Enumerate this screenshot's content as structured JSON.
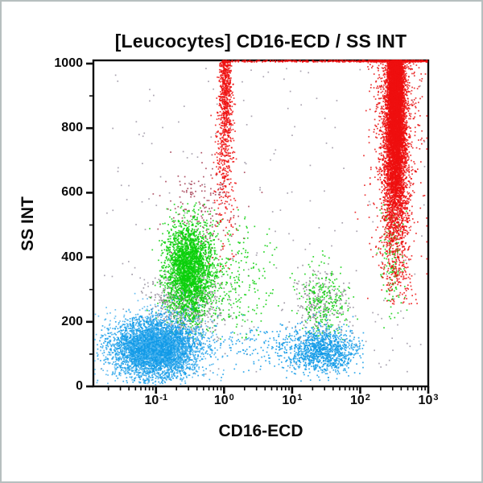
{
  "window": {
    "background": "#ffffff",
    "border_color": "#b7bfbf",
    "frame_color": "#0b0b0b"
  },
  "chart_data": {
    "type": "scatter",
    "subtype": "flow-cytometry-dot-plot",
    "title": "[Leucocytes] CD16-ECD / SS INT",
    "xlabel": "CD16-ECD",
    "ylabel": "SS INT",
    "x_scale": "log10",
    "x_log_range": [
      -1.92,
      3.0
    ],
    "ylim": [
      0,
      1010
    ],
    "y_ticks": [
      1000,
      800,
      600,
      400,
      200,
      0
    ],
    "y_minor_ticks": [
      100,
      300,
      500,
      700,
      900
    ],
    "x_ticks": [
      {
        "base": "10",
        "exp": "-1"
      },
      {
        "base": "10",
        "exp": "0"
      },
      {
        "base": "10",
        "exp": "1"
      },
      {
        "base": "10",
        "exp": "2"
      },
      {
        "base": "10",
        "exp": "3"
      }
    ],
    "x_tick_exponents": [
      -1,
      0,
      1,
      2,
      3
    ],
    "grid": false,
    "legend": "none",
    "colors": {
      "lymphocytes_blue": "#139be8",
      "granulocytes_green": "#0bd00b",
      "cd16_bright_red": "#ee0f0f",
      "monocytes_gray": "#8f8795",
      "dark_red": "#a23a50"
    },
    "seed": 1337,
    "populations": [
      {
        "name": "monocytes-gray",
        "color": "#8f8795",
        "dist": "normal",
        "n": 560,
        "x_mean": -0.55,
        "x_sd": 0.28,
        "y_mean": 250,
        "y_sd": 50
      },
      {
        "name": "gray-right",
        "color": "#8f8795",
        "dist": "normal",
        "n": 230,
        "x_mean": 1.42,
        "x_sd": 0.22,
        "y_mean": 245,
        "y_sd": 55
      },
      {
        "name": "gray-sparse",
        "color": "#9a93a2",
        "dist": "uniform",
        "n": 210,
        "x_min": -1.85,
        "x_max": 2.95,
        "y_min": 30,
        "y_max": 985
      },
      {
        "name": "dark-red-scatter",
        "color": "#a23a50",
        "dist": "normal",
        "n": 170,
        "x_mean": -0.3,
        "x_sd": 0.3,
        "y_mean": 530,
        "y_sd": 80
      },
      {
        "name": "granulocytes-green",
        "color": "#0bd00b",
        "dist": "normal",
        "n": 2700,
        "x_mean": -0.52,
        "x_sd": 0.17,
        "y_mean": 365,
        "y_sd": 75,
        "y_min": 150,
        "y_max": 570
      },
      {
        "name": "green-spread",
        "color": "#0bd00b",
        "dist": "normal",
        "n": 420,
        "x_mean": -0.1,
        "x_sd": 0.4,
        "y_mean": 330,
        "y_sd": 90,
        "y_min": 140,
        "y_max": 560
      },
      {
        "name": "green-right",
        "color": "#0bd00b",
        "dist": "normal",
        "n": 260,
        "x_mean": 1.47,
        "x_sd": 0.17,
        "y_mean": 268,
        "y_sd": 55,
        "y_min": 140,
        "y_max": 430
      },
      {
        "name": "green-under-band",
        "color": "#0bd00b",
        "dist": "normal",
        "n": 160,
        "x_mean": 2.48,
        "x_sd": 0.09,
        "y_mean": 400,
        "y_sd": 110,
        "y_min": 170,
        "y_max": 570
      },
      {
        "name": "lymphocytes",
        "color": "#139be8",
        "dist": "normal",
        "n": 4300,
        "x_mean": -1.02,
        "x_sd": 0.3,
        "y_mean": 118,
        "y_sd": 42,
        "x_min": -1.88,
        "x_max": 0.35,
        "y_min": 8,
        "y_max": 295
      },
      {
        "name": "lymphocytes-fringe",
        "color": "#4fb4ee",
        "dist": "normal",
        "n": 800,
        "x_mean": -1.02,
        "x_sd": 0.45,
        "y_mean": 120,
        "y_sd": 62,
        "x_min": -1.9,
        "x_max": 0.4,
        "y_min": 5,
        "y_max": 300
      },
      {
        "name": "blue-bridge",
        "color": "#139be8",
        "dist": "normal",
        "n": 130,
        "x_mean": 0.5,
        "x_sd": 0.38,
        "y_mean": 122,
        "y_sd": 40,
        "y_min": 20,
        "y_max": 230
      },
      {
        "name": "nk-cells",
        "color": "#139be8",
        "dist": "normal",
        "n": 1150,
        "x_mean": 1.42,
        "x_sd": 0.27,
        "y_mean": 112,
        "y_sd": 35,
        "x_min": 0.55,
        "x_max": 2.05,
        "y_min": 15,
        "y_max": 260
      },
      {
        "name": "cd16-dim-stream",
        "color": "#ee1111",
        "dist": "topstream",
        "n": 900,
        "x_mean": 0.02,
        "x_sd": 0.045,
        "x_sd_bottom": 0.1,
        "y_sd": 230,
        "y_min": 270
      },
      {
        "name": "band-fringe",
        "color": "#e81111",
        "dist": "topstream",
        "n": 950,
        "x_mean": 2.52,
        "x_sd": 0.16,
        "x_sd_bottom": 0.22,
        "y_sd": 290,
        "y_min": 240,
        "x_max": 2.98
      },
      {
        "name": "neutrophils-cd16-bright",
        "color": "#ee0f0f",
        "dist": "topstream",
        "n": 7800,
        "x_mean": 2.52,
        "x_sd": 0.055,
        "x_sd_bottom": 0.12,
        "y_sd": 265,
        "y_min": 255,
        "x_max": 2.98
      },
      {
        "name": "offscale-top-pileup",
        "color": "#ee0f0f",
        "dist": "topline",
        "n": 650,
        "x_mean": 2.55,
        "x_sd": 0.3,
        "uniform_frac": 0.45,
        "x_min": -0.05,
        "x_max": 2.98
      }
    ]
  }
}
